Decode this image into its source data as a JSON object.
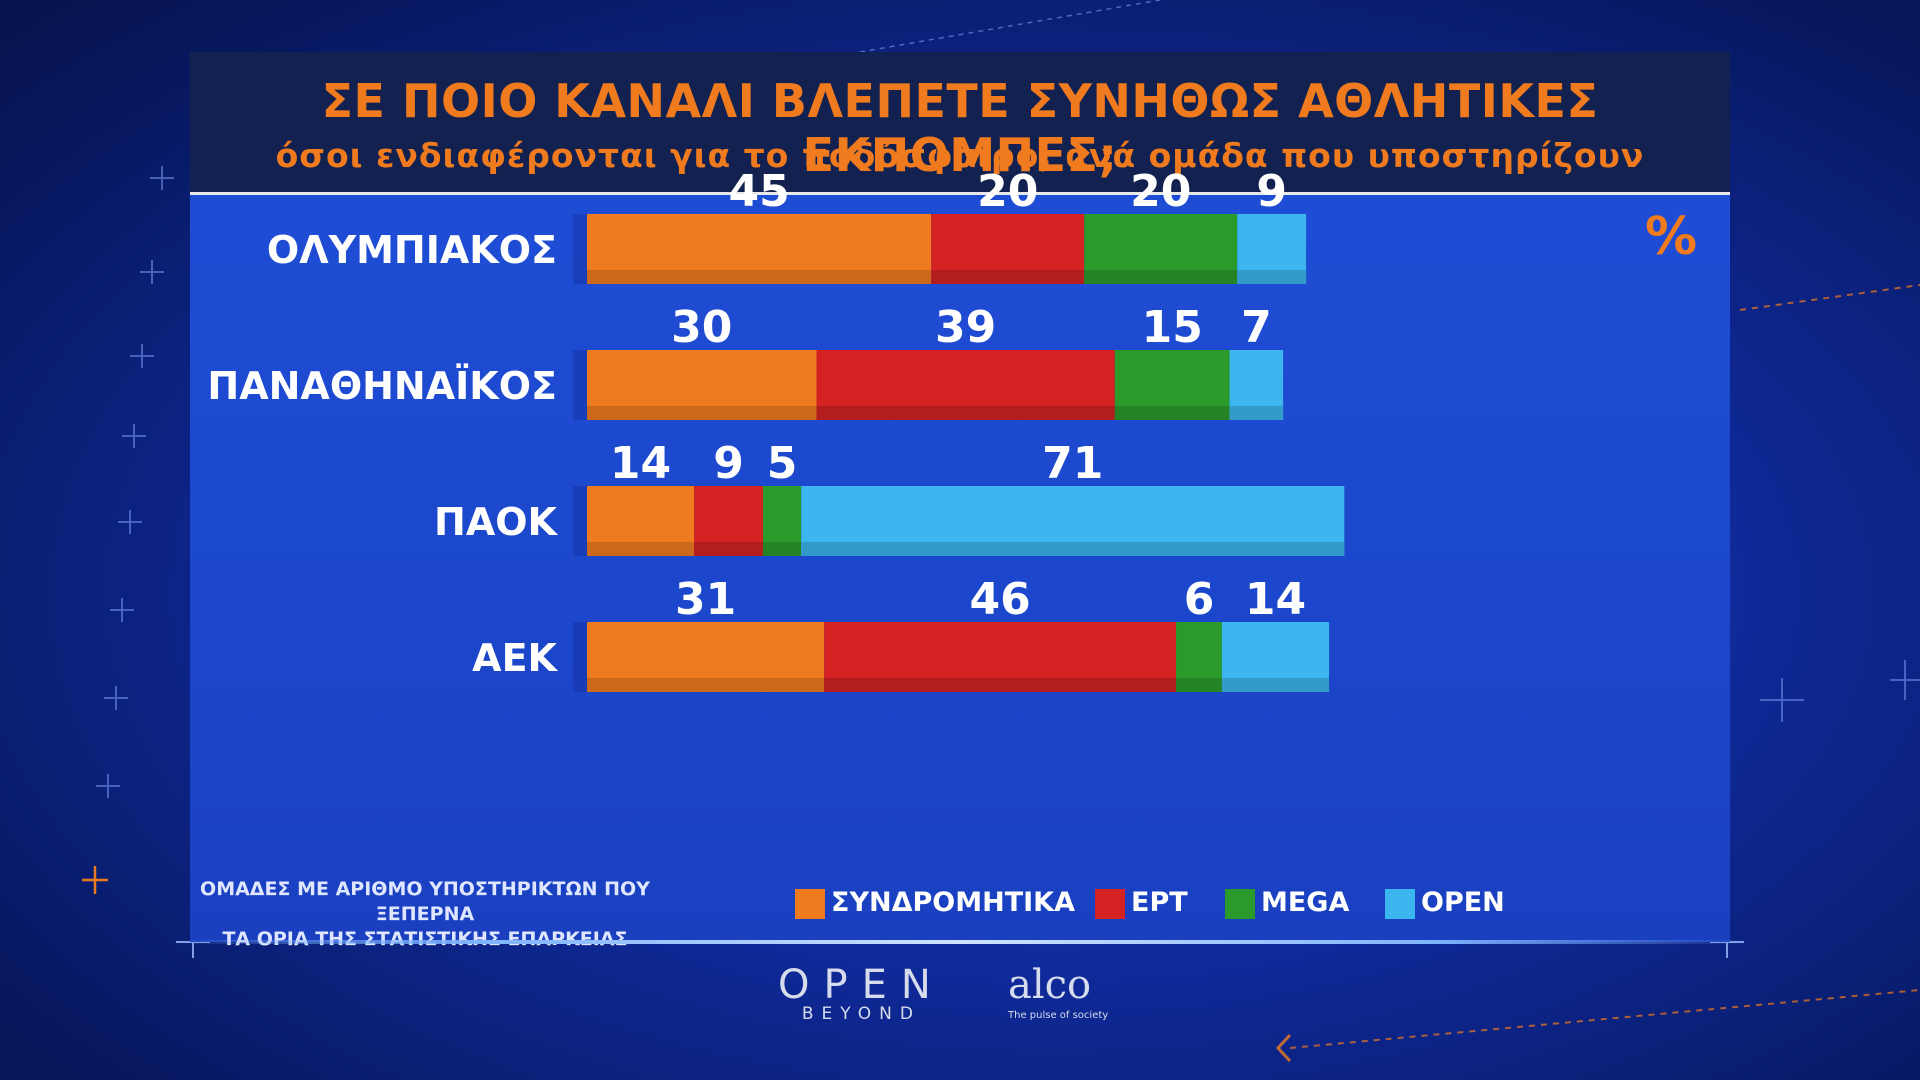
{
  "header": {
    "title": "ΣΕ ΠΟΙΟ ΚΑΝΑΛΙ ΒΛΕΠΕΤΕ ΣΥΝΗΘΩΣ ΑΘΛΗΤΙΚΕΣ ΕΚΠΟΜΠΕΣ;",
    "subtitle": "όσοι ενδιαφέρονται για το ποδόσφαιρο, ανά ομάδα που υποστηρίζουν"
  },
  "unit_label": "%",
  "footnote": {
    "line1": "ΟΜΑΔΕΣ ΜΕ ΑΡΙΘΜΟ ΥΠΟΣΤΗΡΙΚΤΩΝ ΠΟΥ ΞΕΠΕΡΝΑ",
    "line2": "ΤΑ ΟΡΙΑ ΤΗΣ ΣΤΑΤΙΣΤΙΚΗΣ ΕΠΑΡΚΕΙΑΣ"
  },
  "logos": {
    "open_main": "OPEN",
    "open_sub": "BEYOND",
    "alco_main": "alco",
    "alco_sub": "The pulse of society"
  },
  "colors": {
    "subscription": "#f07a1e",
    "ert": "#d42222",
    "mega": "#2a9a2a",
    "open": "#3bb6ee",
    "accent": "#f07a1e"
  },
  "chart_data": {
    "type": "bar",
    "orientation": "horizontal",
    "stacked": true,
    "unit": "%",
    "categories": [
      "ΟΛΥΜΠΙΑΚΟΣ",
      "ΠΑΝΑΘΗΝΑΪΚΟΣ",
      "ΠΑΟΚ",
      "ΑΕΚ"
    ],
    "series": [
      {
        "name": "ΣΥΝΔΡΟΜΗΤΙΚΑ",
        "color": "#f07a1e",
        "values": [
          45,
          30,
          14,
          31
        ]
      },
      {
        "name": "ΕΡΤ",
        "color": "#d42222",
        "values": [
          20,
          39,
          9,
          46
        ]
      },
      {
        "name": "MEGA",
        "color": "#2a9a2a",
        "values": [
          20,
          15,
          5,
          6
        ]
      },
      {
        "name": "OPEN",
        "color": "#3bb6ee",
        "values": [
          9,
          7,
          71,
          14
        ]
      }
    ],
    "legend_position": "bottom",
    "grid": false
  }
}
